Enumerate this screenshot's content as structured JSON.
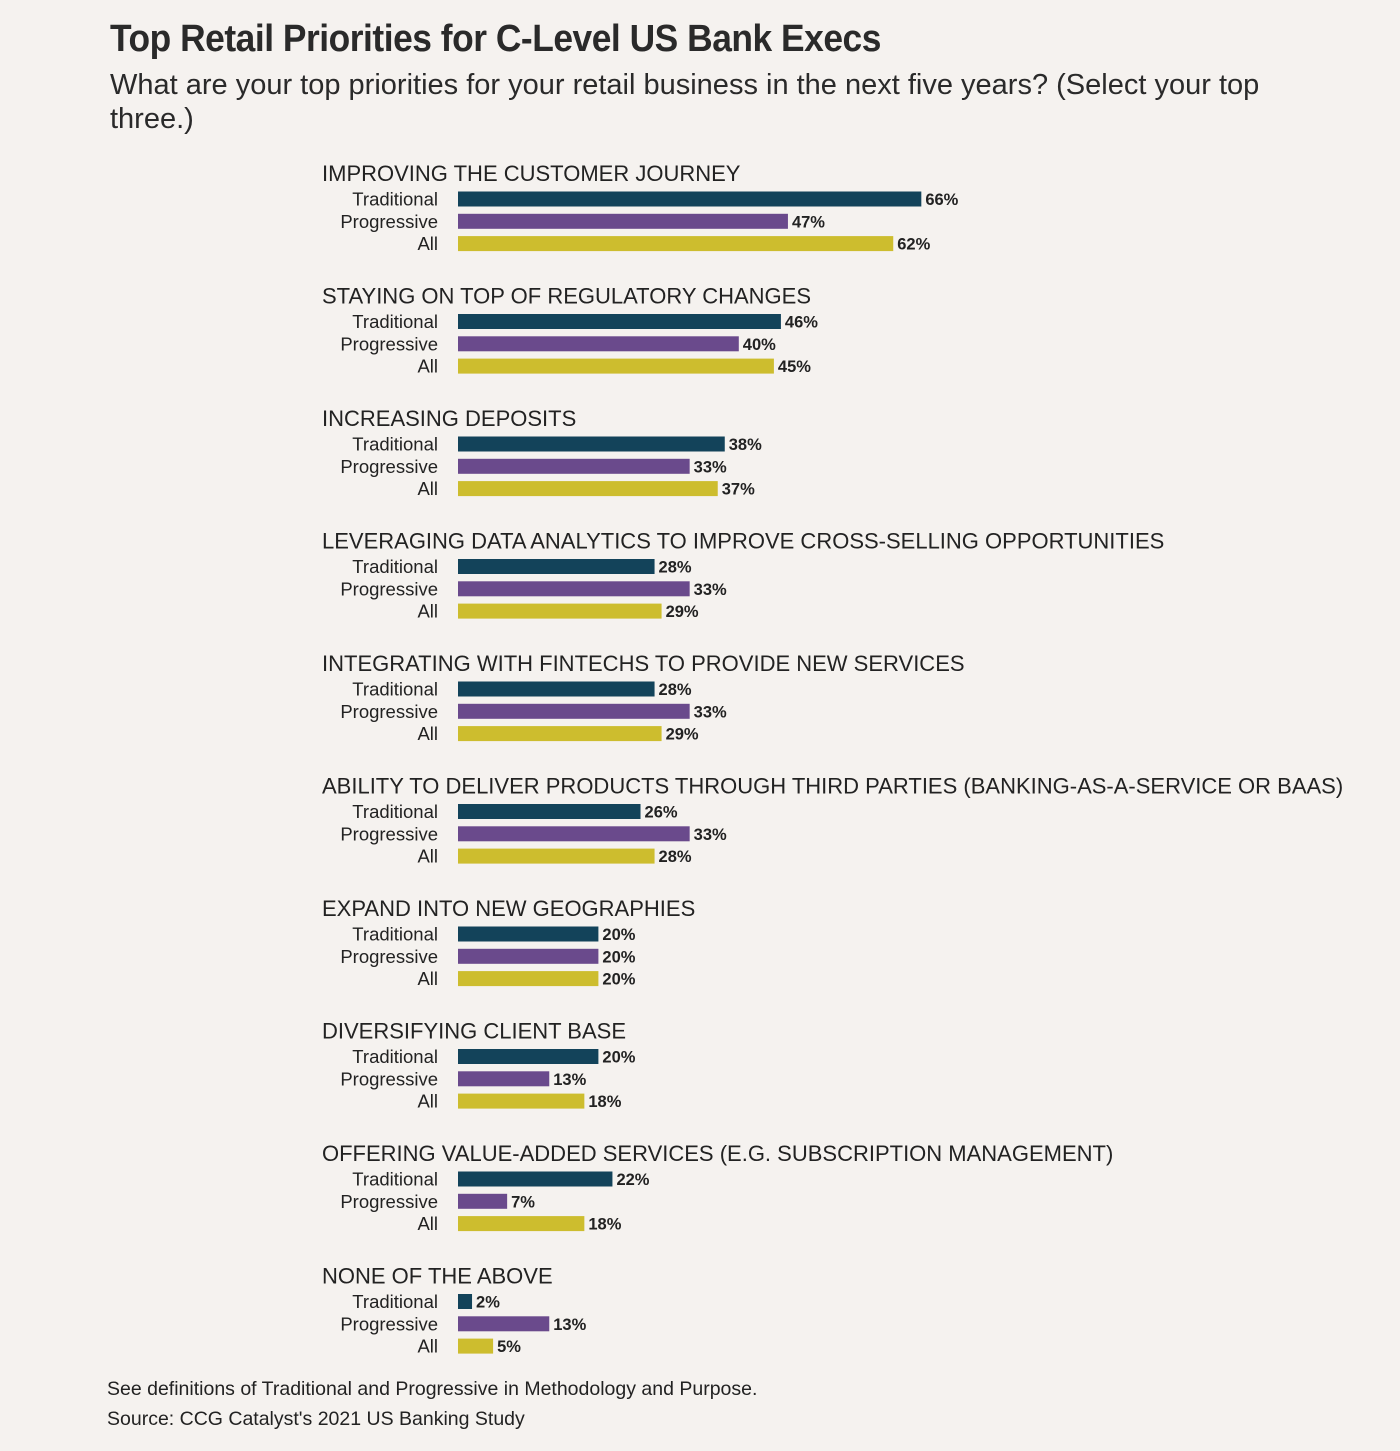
{
  "chart_data": {
    "type": "bar",
    "orientation": "horizontal",
    "title": "Top Retail Priorities for C-Level US Bank Execs",
    "subtitle": "What are your top priorities for your retail business in the next five years? (Select your top three.)",
    "value_suffix": "%",
    "xlim": [
      0,
      100
    ],
    "grid": false,
    "legend": "none",
    "series_names": [
      "Traditional",
      "Progressive",
      "All"
    ],
    "colors": {
      "Traditional": "#13435a",
      "Progressive": "#6a4a8c",
      "All": "#cdbd2e"
    },
    "categories": [
      "IMPROVING THE CUSTOMER JOURNEY",
      "STAYING ON TOP OF REGULATORY CHANGES",
      "INCREASING DEPOSITS",
      "LEVERAGING DATA ANALYTICS TO IMPROVE CROSS-SELLING OPPORTUNITIES",
      "INTEGRATING WITH FINTECHS TO PROVIDE NEW SERVICES",
      "ABILITY TO DELIVER PRODUCTS THROUGH THIRD PARTIES (BANKING-AS-A-SERVICE OR BAAS)",
      "EXPAND INTO NEW GEOGRAPHIES",
      "DIVERSIFYING CLIENT BASE",
      "OFFERING VALUE-ADDED SERVICES (E.G. SUBSCRIPTION MANAGEMENT)",
      "NONE OF THE ABOVE"
    ],
    "series": [
      {
        "name": "Traditional",
        "values": [
          66,
          46,
          38,
          28,
          28,
          26,
          20,
          20,
          22,
          2
        ]
      },
      {
        "name": "Progressive",
        "values": [
          47,
          40,
          33,
          33,
          33,
          33,
          20,
          13,
          7,
          13
        ]
      },
      {
        "name": "All",
        "values": [
          62,
          45,
          37,
          29,
          29,
          28,
          20,
          18,
          18,
          5
        ]
      }
    ]
  },
  "footnotes": {
    "definitions": "See definitions of Traditional and Progressive in Methodology and Purpose.",
    "source": "Source: CCG Catalyst's 2021 US Banking Study"
  }
}
